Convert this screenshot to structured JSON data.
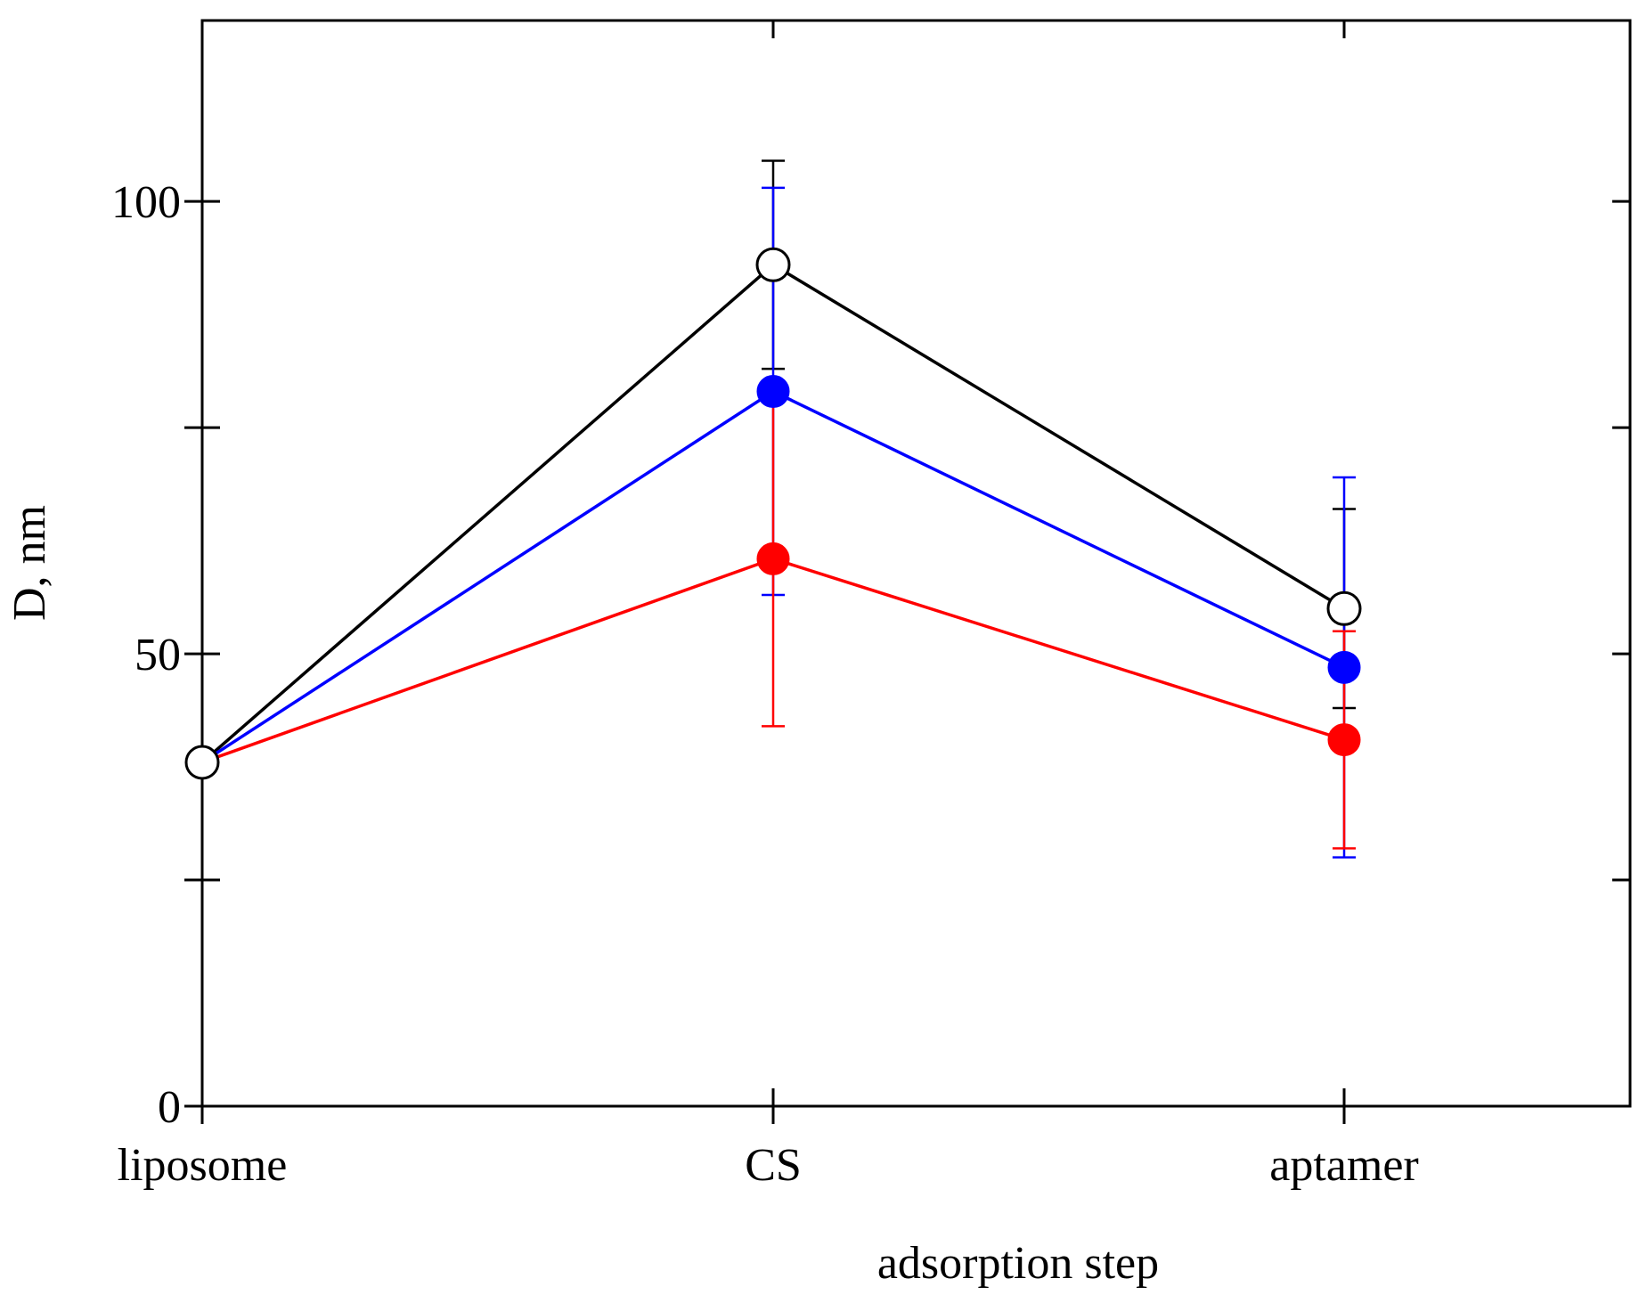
{
  "chart_data": {
    "type": "line",
    "title": "",
    "xlabel": "adsorption step",
    "ylabel": "D, nm",
    "categories": [
      "liposome",
      "CS",
      "aptamer"
    ],
    "ylim": [
      0,
      120
    ],
    "yticks_labeled": [
      0,
      50,
      100
    ],
    "yticks_minor": [
      25,
      75
    ],
    "grid": false,
    "legend": "none",
    "series": [
      {
        "name": "black",
        "color": "#000000",
        "marker": "open-circle",
        "values": [
          38,
          93,
          55
        ],
        "errors": [
          null,
          11.5,
          11
        ]
      },
      {
        "name": "blue",
        "color": "#0000ff",
        "marker": "filled-circle",
        "values": [
          38,
          79,
          48.5
        ],
        "errors": [
          null,
          22.5,
          21
        ]
      },
      {
        "name": "red",
        "color": "#ff0000",
        "marker": "filled-circle",
        "values": [
          38,
          60.5,
          40.5
        ],
        "errors": [
          null,
          18.5,
          12
        ]
      }
    ]
  }
}
